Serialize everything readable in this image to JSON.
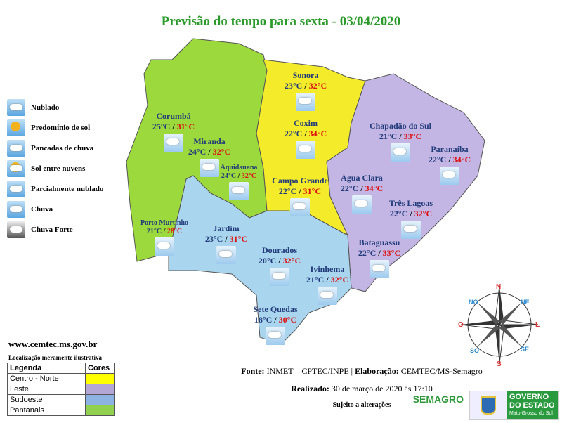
{
  "title": "Previsão do tempo para sexta - 03/04/2020",
  "legend_icons": [
    {
      "label": "Nublado",
      "icon": "cloudy-icon"
    },
    {
      "label": "Predomínio de sol",
      "icon": "sun-icon"
    },
    {
      "label": "Pancadas de chuva",
      "icon": "showers-icon"
    },
    {
      "label": "Sol entre nuvens",
      "icon": "sun-between-clouds-icon"
    },
    {
      "label": "Parcialmente nublado",
      "icon": "partly-cloudy-icon"
    },
    {
      "label": "Chuva",
      "icon": "rain-icon"
    },
    {
      "label": "Chuva Forte",
      "icon": "thunderstorm-icon"
    }
  ],
  "cities": [
    {
      "name": "Sonora",
      "min": "23°C",
      "max": "32°C",
      "icon": "rain-icon"
    },
    {
      "name": "Corumbá",
      "min": "25°C",
      "max": "31°C",
      "icon": "partly-cloudy-icon"
    },
    {
      "name": "Coxim",
      "min": "22°C",
      "max": "34°C",
      "icon": "partly-cloudy-icon"
    },
    {
      "name": "Chapadão do Sul",
      "min": "21°C",
      "max": "33°C",
      "icon": "showers-icon"
    },
    {
      "name": "Miranda",
      "min": "24°C",
      "max": "32°C",
      "icon": "partly-cloudy-icon"
    },
    {
      "name": "Paranaíba",
      "min": "22°C",
      "max": "34°C",
      "icon": "showers-icon"
    },
    {
      "name": "Aquidauana",
      "min": "24°C",
      "max": "32°C",
      "icon": "partly-cloudy-icon"
    },
    {
      "name": "Campo Grande",
      "min": "22°C",
      "max": "31°C",
      "icon": "partly-cloudy-icon"
    },
    {
      "name": "Água Clara",
      "min": "22°C",
      "max": "34°C",
      "icon": "partly-cloudy-icon"
    },
    {
      "name": "Três Lagoas",
      "min": "22°C",
      "max": "32°C",
      "icon": "showers-icon"
    },
    {
      "name": "Porto Murtinho",
      "min": "21°C",
      "max": "28°C",
      "icon": "partly-cloudy-icon"
    },
    {
      "name": "Jardim",
      "min": "23°C",
      "max": "31°C",
      "icon": "partly-cloudy-icon"
    },
    {
      "name": "Bataguassu",
      "min": "22°C",
      "max": "33°C",
      "icon": "partly-cloudy-icon"
    },
    {
      "name": "Dourados",
      "min": "20°C",
      "max": "32°C",
      "icon": "partly-cloudy-icon"
    },
    {
      "name": "Ivinhema",
      "min": "21°C",
      "max": "32°C",
      "icon": "partly-cloudy-icon"
    },
    {
      "name": "Sete Quedas",
      "min": "18°C",
      "max": "30°C",
      "icon": "partly-cloudy-icon"
    }
  ],
  "compass": {
    "n": "N",
    "s": "S",
    "l": "L",
    "o": "O",
    "ne": "NE",
    "no": "NO",
    "se": "SE",
    "so": "SO"
  },
  "website": "www.cemtec.ms.gov.br",
  "note": "Localização meramente ilustrativa",
  "region_legend": {
    "header_label": "Legenda",
    "header_colors": "Cores",
    "rows": [
      {
        "label": "Centro - Norte",
        "color": "#ffff00"
      },
      {
        "label": "Leste",
        "color": "#b4a7d6"
      },
      {
        "label": "Sudoeste",
        "color": "#8db3e2"
      },
      {
        "label": "Pantanais",
        "color": "#92d050"
      }
    ]
  },
  "regions_colors": {
    "centro_norte": "#f4ec2a",
    "leste": "#c3b6e4",
    "sudoeste": "#a9d6ee",
    "pantanais": "#9bd93c"
  },
  "footer": {
    "fonte_label": "Fonte:",
    "fonte": " INMET – CPTEC/INPE | ",
    "elab_label": "Elaboração:",
    "elab": " CEMTEC/MS-Semagro",
    "realizado_label": "Realizado:",
    "realizado": " 30 de março de 2020 ás 17:10",
    "sujeito": "Sujeito a alterações"
  },
  "logos": {
    "semagro": "SEMAGRO",
    "governo1": "GOVERNO",
    "governo2": "DO ESTADO",
    "governo3": "Mato Grosso do Sul"
  }
}
